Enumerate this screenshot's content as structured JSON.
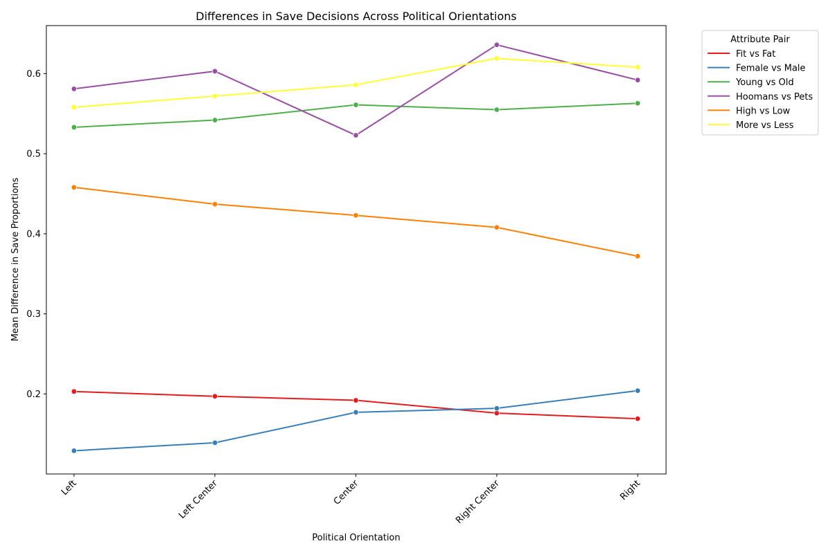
{
  "chart_data": {
    "type": "line",
    "title": "Differences in Save Decisions Across Political Orientations",
    "xlabel": "Political Orientation",
    "ylabel": "Mean Difference in Save Proportions",
    "categories": [
      "Left",
      "Left Center",
      "Center",
      "Right Center",
      "Right"
    ],
    "ylim": [
      0.1,
      0.66
    ],
    "yticks": [
      0.2,
      0.3,
      0.4,
      0.5,
      0.6
    ],
    "ytick_labels": [
      "0.2",
      "0.3",
      "0.4",
      "0.5",
      "0.6"
    ],
    "grid": false,
    "legend": {
      "title": "Attribute Pair",
      "placement": "outside-upper-right"
    },
    "series": [
      {
        "name": "Fit vs Fat",
        "color": "#e41a1c",
        "values": [
          0.203,
          0.197,
          0.192,
          0.176,
          0.169
        ]
      },
      {
        "name": "Female vs Male",
        "color": "#377eb8",
        "values": [
          0.129,
          0.139,
          0.177,
          0.182,
          0.204
        ]
      },
      {
        "name": "Young vs Old",
        "color": "#4daf4a",
        "values": [
          0.533,
          0.542,
          0.561,
          0.555,
          0.563
        ]
      },
      {
        "name": "Hoomans vs Pets",
        "color": "#984ea3",
        "values": [
          0.581,
          0.603,
          0.523,
          0.636,
          0.592
        ]
      },
      {
        "name": "High vs Low",
        "color": "#ff7f00",
        "values": [
          0.458,
          0.437,
          0.423,
          0.408,
          0.372
        ]
      },
      {
        "name": "More vs Less",
        "color": "#ffff33",
        "values": [
          0.558,
          0.572,
          0.586,
          0.619,
          0.608
        ]
      }
    ]
  }
}
